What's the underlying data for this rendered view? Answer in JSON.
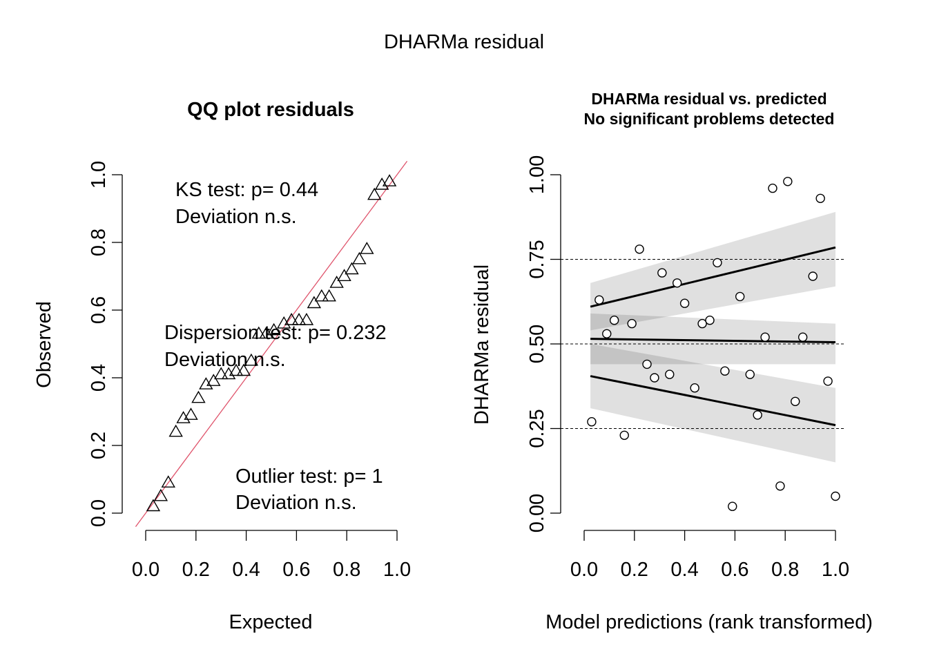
{
  "page_title": "DHARMa residual",
  "chart_data": [
    {
      "type": "scatter",
      "title": "QQ plot residuals",
      "xlabel": "Expected",
      "ylabel": "Observed",
      "xlim": [
        0,
        1
      ],
      "ylim": [
        0,
        1
      ],
      "xticks": [
        "0.0",
        "0.2",
        "0.4",
        "0.6",
        "0.8",
        "1.0"
      ],
      "yticks": [
        "0.0",
        "0.2",
        "0.4",
        "0.6",
        "0.8",
        "1.0"
      ],
      "reference_line": "identity (y = x)",
      "marker": "triangle",
      "points": [
        [
          0.03,
          0.02
        ],
        [
          0.06,
          0.05
        ],
        [
          0.09,
          0.09
        ],
        [
          0.12,
          0.24
        ],
        [
          0.15,
          0.28
        ],
        [
          0.18,
          0.29
        ],
        [
          0.21,
          0.34
        ],
        [
          0.24,
          0.38
        ],
        [
          0.27,
          0.39
        ],
        [
          0.3,
          0.41
        ],
        [
          0.33,
          0.41
        ],
        [
          0.36,
          0.42
        ],
        [
          0.39,
          0.42
        ],
        [
          0.42,
          0.45
        ],
        [
          0.45,
          0.53
        ],
        [
          0.48,
          0.53
        ],
        [
          0.51,
          0.54
        ],
        [
          0.55,
          0.56
        ],
        [
          0.58,
          0.57
        ],
        [
          0.61,
          0.57
        ],
        [
          0.64,
          0.57
        ],
        [
          0.67,
          0.62
        ],
        [
          0.7,
          0.64
        ],
        [
          0.73,
          0.64
        ],
        [
          0.76,
          0.68
        ],
        [
          0.79,
          0.7
        ],
        [
          0.82,
          0.72
        ],
        [
          0.85,
          0.75
        ],
        [
          0.88,
          0.78
        ],
        [
          0.91,
          0.94
        ],
        [
          0.94,
          0.97
        ],
        [
          0.97,
          0.98
        ]
      ],
      "annotations": [
        {
          "lines": [
            "KS test: p= 0.44",
            "Deviation  n.s."
          ]
        },
        {
          "lines": [
            "Dispersion test: p= 0.232",
            "Deviation  n.s."
          ]
        },
        {
          "lines": [
            "Outlier test: p= 1",
            "Deviation  n.s."
          ]
        }
      ]
    },
    {
      "type": "scatter",
      "title_lines": [
        "DHARMa residual vs. predicted",
        "No significant problems detected"
      ],
      "xlabel": "Model predictions (rank transformed)",
      "ylabel": "DHARMa residual",
      "xlim": [
        0,
        1
      ],
      "ylim": [
        0,
        1
      ],
      "xticks": [
        "0.0",
        "0.2",
        "0.4",
        "0.6",
        "0.8",
        "1.0"
      ],
      "yticks": [
        "0.00",
        "0.25",
        "0.50",
        "0.75",
        "1.00"
      ],
      "reference_lines": [
        0.25,
        0.5,
        0.75
      ],
      "marker": "circle",
      "points": [
        [
          0.03,
          0.27
        ],
        [
          0.06,
          0.63
        ],
        [
          0.09,
          0.53
        ],
        [
          0.12,
          0.57
        ],
        [
          0.16,
          0.23
        ],
        [
          0.19,
          0.56
        ],
        [
          0.22,
          0.78
        ],
        [
          0.25,
          0.44
        ],
        [
          0.28,
          0.4
        ],
        [
          0.31,
          0.71
        ],
        [
          0.34,
          0.41
        ],
        [
          0.37,
          0.68
        ],
        [
          0.4,
          0.62
        ],
        [
          0.44,
          0.37
        ],
        [
          0.47,
          0.56
        ],
        [
          0.5,
          0.57
        ],
        [
          0.53,
          0.74
        ],
        [
          0.56,
          0.42
        ],
        [
          0.59,
          0.02
        ],
        [
          0.62,
          0.64
        ],
        [
          0.66,
          0.41
        ],
        [
          0.69,
          0.29
        ],
        [
          0.72,
          0.52
        ],
        [
          0.75,
          0.96
        ],
        [
          0.78,
          0.08
        ],
        [
          0.81,
          0.98
        ],
        [
          0.84,
          0.33
        ],
        [
          0.87,
          0.52
        ],
        [
          0.91,
          0.7
        ],
        [
          0.94,
          0.93
        ],
        [
          0.97,
          0.39
        ],
        [
          1.0,
          0.05
        ]
      ],
      "quantile_fits": [
        {
          "quantile": 0.25,
          "start": [
            0.025,
            0.405
          ],
          "end": [
            1.0,
            0.26
          ],
          "band_start": [
            0.31,
            0.5
          ],
          "band_end": [
            0.15,
            0.37
          ]
        },
        {
          "quantile": 0.5,
          "start": [
            0.025,
            0.515
          ],
          "end": [
            1.0,
            0.505
          ],
          "band_start": [
            0.44,
            0.59
          ],
          "band_end": [
            0.44,
            0.56
          ]
        },
        {
          "quantile": 0.75,
          "start": [
            0.025,
            0.61
          ],
          "end": [
            1.0,
            0.785
          ],
          "band_start": [
            0.54,
            0.68
          ],
          "band_end": [
            0.67,
            0.89
          ]
        }
      ]
    }
  ]
}
